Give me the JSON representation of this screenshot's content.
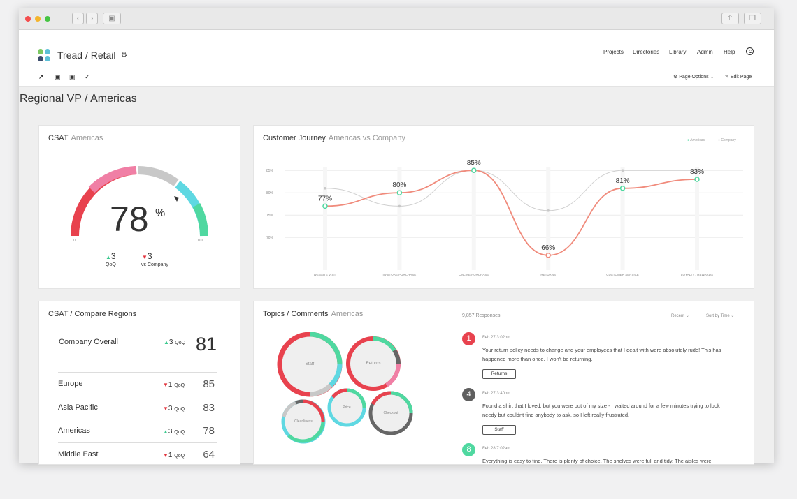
{
  "app": {
    "title": "Tread / Retail",
    "nav": [
      "Projects",
      "Directories",
      "Library",
      "Admin",
      "Help"
    ]
  },
  "toolbar": {
    "page_options": "Page Options",
    "edit_page": "Edit Page"
  },
  "page_title": "Regional VP  /  Americas",
  "csat": {
    "title": "CSAT",
    "subtitle": "Americas",
    "value": "78",
    "unit": "%",
    "gauge_value": 78,
    "min": "0",
    "max": "100",
    "qoq_delta": "3",
    "qoq_label": "QoQ",
    "company_delta": "3",
    "company_label": "vs Company"
  },
  "journey": {
    "title": "Customer Journey",
    "subtitle": "Americas vs Company",
    "legend": [
      "Americas",
      "Company"
    ]
  },
  "chart_data": {
    "type": "line",
    "categories": [
      "WEBSITE VISIT",
      "IN-STORE PURCHASE",
      "ONLINE PURCHASE",
      "RETURNS",
      "CUSTOMER SERVICE",
      "LOYALTY / REWARDS"
    ],
    "series": [
      {
        "name": "Americas",
        "values": [
          77,
          80,
          85,
          66,
          81,
          83
        ],
        "labels": [
          "77%",
          "80%",
          "85%",
          "66%",
          "81%",
          "83%"
        ]
      },
      {
        "name": "Company",
        "values": [
          81,
          77,
          85,
          76,
          85,
          85
        ]
      }
    ],
    "yticks": [
      "85%",
      "80%",
      "75%",
      "70%"
    ],
    "ylim": [
      63,
      88
    ],
    "grid": true,
    "legend_position": "top-right"
  },
  "compare": {
    "title": "CSAT  /  Compare Regions",
    "overall": {
      "name": "Company Overall",
      "delta": "3",
      "dir": "up",
      "label": "QoQ",
      "value": "81"
    },
    "rows": [
      {
        "name": "Europe",
        "delta": "1",
        "dir": "down",
        "label": "QoQ",
        "value": "85"
      },
      {
        "name": "Asia Pacific",
        "delta": "3",
        "dir": "down",
        "label": "QoQ",
        "value": "83"
      },
      {
        "name": "Americas",
        "delta": "3",
        "dir": "up",
        "label": "QoQ",
        "value": "78"
      },
      {
        "name": "Middle East",
        "delta": "1",
        "dir": "down",
        "label": "QoQ",
        "value": "64"
      }
    ]
  },
  "topics": {
    "title": "Topics / Comments",
    "subtitle": "Americas",
    "responses": "9,857 Responses",
    "recent": "Recent",
    "sort": "Sort by Time",
    "bubbles": [
      "Staff",
      "Returns",
      "Price",
      "Checkout",
      "Cleanliness"
    ],
    "comments": [
      {
        "score": "1",
        "color": "#e8424e",
        "date": "Feb 27   3:02pm",
        "text": "Your return policy needs to change and your employees that I dealt with were absolutely rude!  This has happened more than once.  I won't be returning.",
        "tag": "Returns"
      },
      {
        "score": "4",
        "color": "#5f5f5f",
        "date": "Feb 27   3:40pm",
        "text": "Found a shirt that I loved, but you were out of my size - I waited around for a few minutes trying to look needy but couldnt find anybody to ask, so I left really frustrated.",
        "tag": "Staff"
      },
      {
        "score": "8",
        "color": "#4fd8a0",
        "date": "Feb 28   7:02am",
        "text": "Everything is easy to find. There is plenty of choice. The shelves were full and tidy. The aisles were",
        "tag": ""
      }
    ]
  },
  "colors": {
    "teal": "#4fd8a0",
    "red": "#e8424e",
    "pink": "#f07fa5",
    "cyan": "#5fd8e2",
    "gray": "#c8c8c8",
    "dark": "#666666"
  }
}
